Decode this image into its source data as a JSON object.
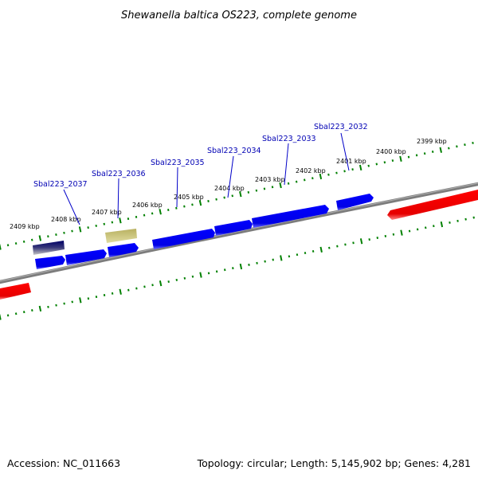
{
  "title": "Shewanella baltica OS223, complete genome",
  "footer": {
    "accession": "Accession: NC_011663",
    "summary": "Topology: circular; Length: 5,145,902 bp; Genes: 4,281"
  },
  "ruler": {
    "unit": "kbp",
    "labels": [
      {
        "kbp": 2409,
        "text": "2409 kbp"
      },
      {
        "kbp": 2408,
        "text": "2408 kbp"
      },
      {
        "kbp": 2407,
        "text": "2407 kbp"
      },
      {
        "kbp": 2406,
        "text": "2406 kbp"
      },
      {
        "kbp": 2405,
        "text": "2405 kbp"
      },
      {
        "kbp": 2404,
        "text": "2404 kbp"
      },
      {
        "kbp": 2403,
        "text": "2403 kbp"
      },
      {
        "kbp": 2402,
        "text": "2402 kbp"
      },
      {
        "kbp": 2401,
        "text": "2401 kbp"
      },
      {
        "kbp": 2400,
        "text": "2400 kbp"
      },
      {
        "kbp": 2399,
        "text": "2399 kbp"
      }
    ]
  },
  "gene_labels": [
    {
      "text": "Sbal223_2037"
    },
    {
      "text": "Sbal223_2036"
    },
    {
      "text": "Sbal223_2035"
    },
    {
      "text": "Sbal223_2034"
    },
    {
      "text": "Sbal223_2033"
    },
    {
      "text": "Sbal223_2032"
    }
  ],
  "colors": {
    "forward_gene": "#0000ee",
    "reverse_gene": "#ee0000",
    "rna_feature": "#bdb76b",
    "dark_feature": "#00006e",
    "backbone": "#808080",
    "ticks": "#008000",
    "label_line": "#0000c8"
  }
}
